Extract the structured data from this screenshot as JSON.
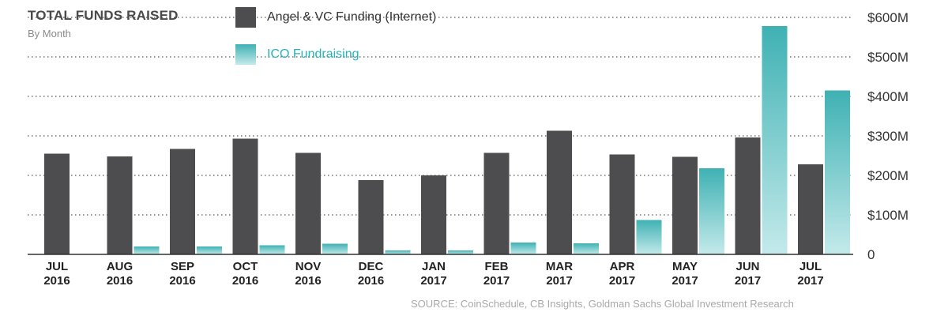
{
  "chart_data": {
    "type": "bar",
    "title": "TOTAL FUNDS RAISED",
    "subtitle": "By Month",
    "categories": [
      [
        "JUL",
        "2016"
      ],
      [
        "AUG",
        "2016"
      ],
      [
        "SEP",
        "2016"
      ],
      [
        "OCT",
        "2016"
      ],
      [
        "NOV",
        "2016"
      ],
      [
        "DEC",
        "2016"
      ],
      [
        "JAN",
        "2017"
      ],
      [
        "FEB",
        "2017"
      ],
      [
        "MAR",
        "2017"
      ],
      [
        "APR",
        "2017"
      ],
      [
        "MAY",
        "2017"
      ],
      [
        "JUN",
        "2017"
      ],
      [
        "JUL",
        "2017"
      ]
    ],
    "series": [
      {
        "name": "Angel & VC Funding (Internet)",
        "color": "#4d4d4f",
        "values": [
          255,
          248,
          267,
          293,
          257,
          188,
          200,
          257,
          313,
          253,
          247,
          296,
          228
        ]
      },
      {
        "name": "ICO Fundraising",
        "color": "#5cc4c8",
        "gradient": [
          "#3fb1b3",
          "#c4eaeb"
        ],
        "values": [
          0,
          20,
          20,
          23,
          27,
          10,
          10,
          30,
          28,
          87,
          218,
          578,
          415
        ]
      }
    ],
    "unit": "USD millions",
    "ylim": [
      0,
      600
    ],
    "yticks": [
      0,
      100,
      200,
      300,
      400,
      500,
      600
    ],
    "ytick_labels": [
      "0",
      "$100M",
      "$200M",
      "$300M",
      "$400M",
      "$500M",
      "$600M"
    ],
    "grid": "dotted horizontal",
    "legend_position": "top-left",
    "source": "SOURCE: CoinSchedule, CB Insights, Goldman Sachs Global Investment Research"
  },
  "colors": {
    "title": "#4a4a4a",
    "legend_angel_text": "#333333",
    "legend_ico_text": "#2ab3b6",
    "axis": "#333333"
  }
}
